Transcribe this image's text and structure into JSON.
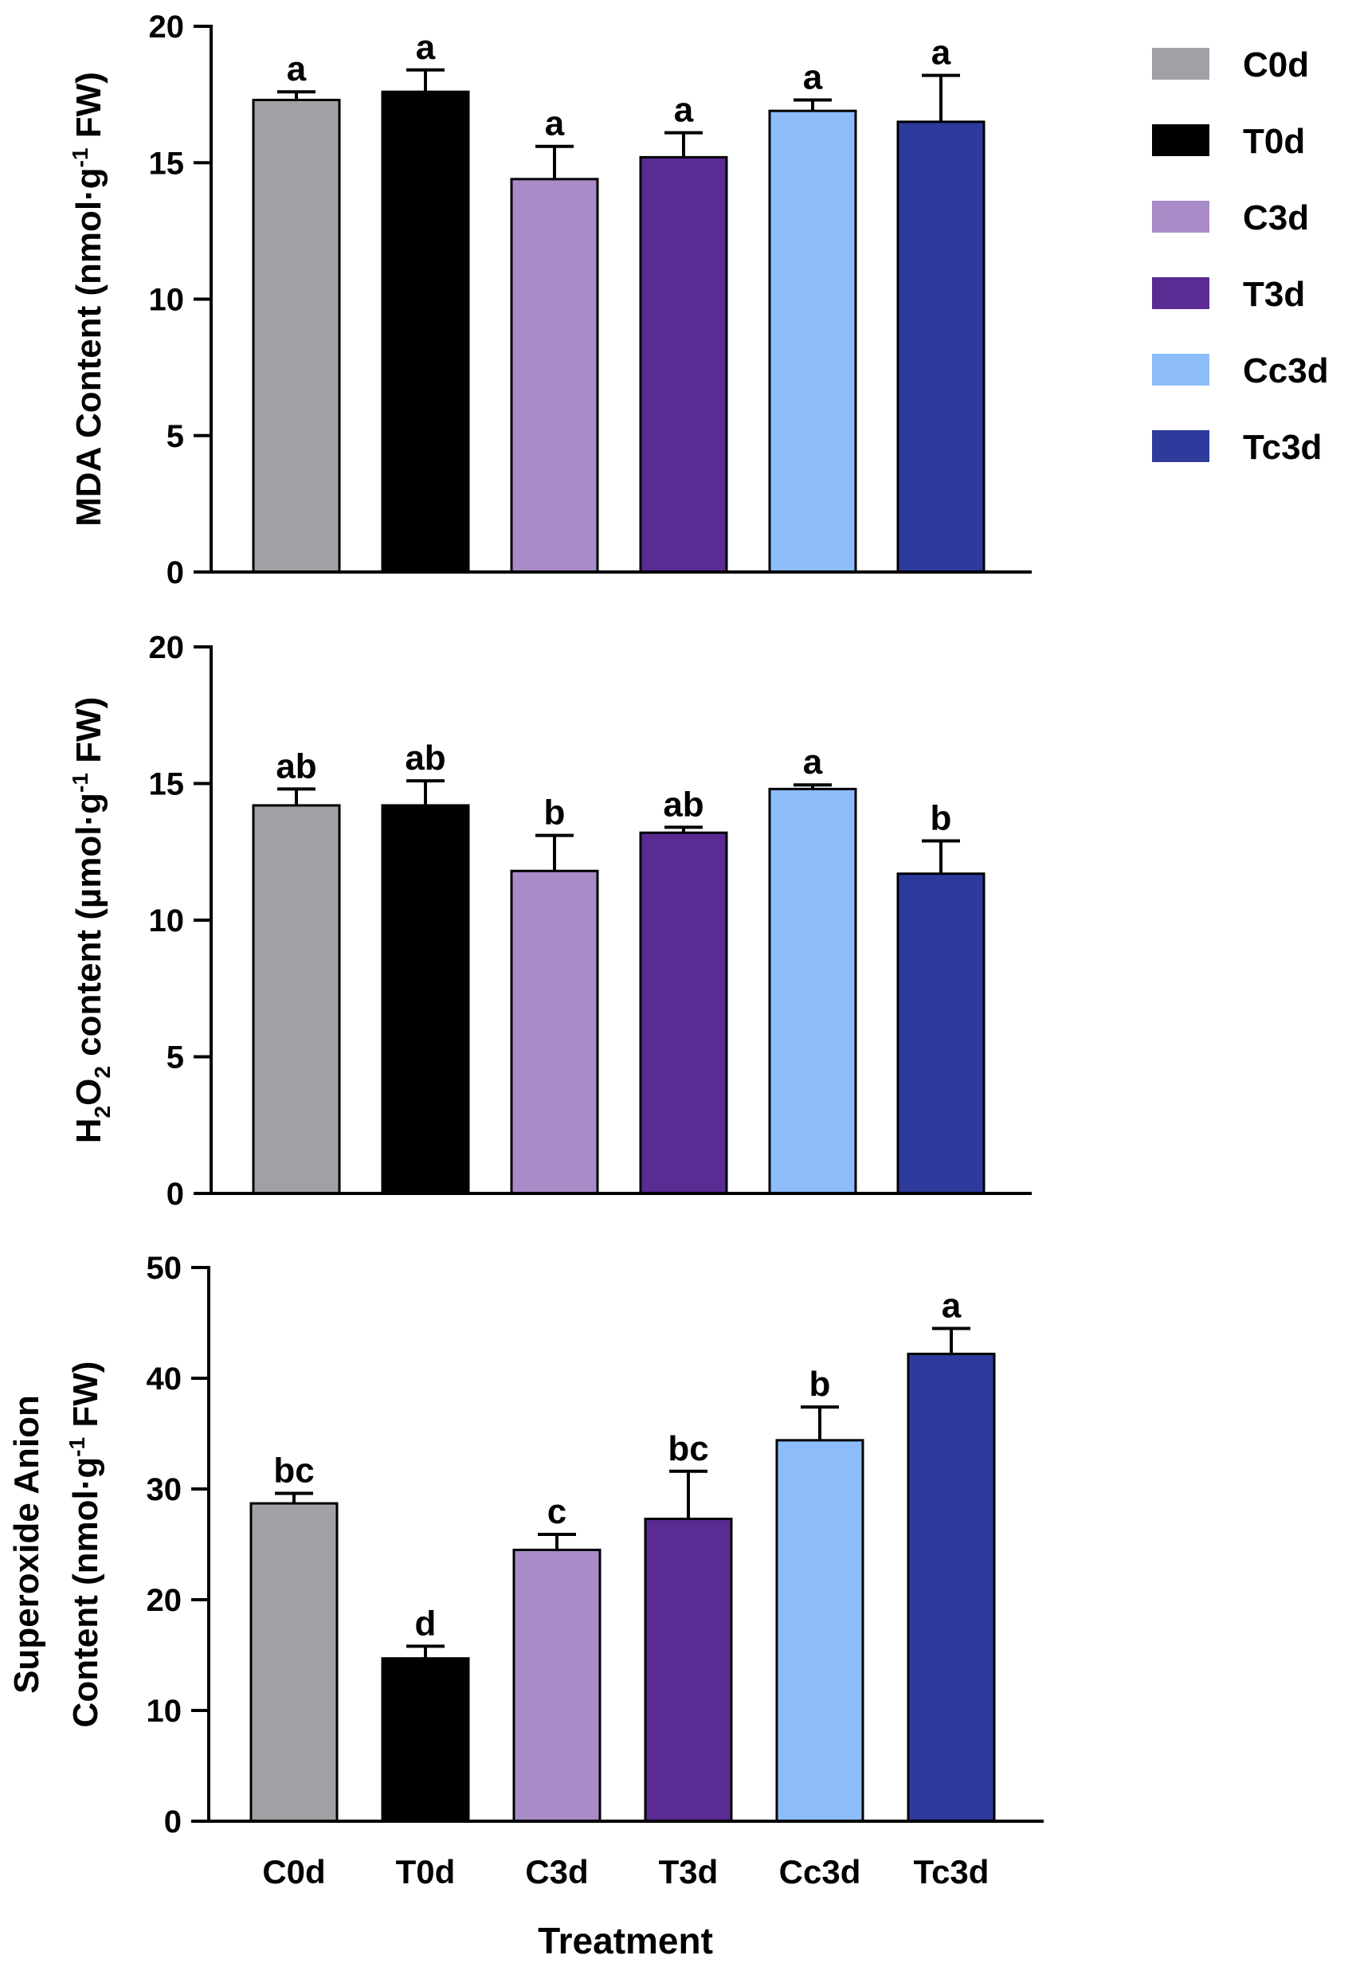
{
  "chart_data": [
    {
      "type": "bar",
      "ylabel_parts": [
        "MDA Content (nmol·g",
        "-1",
        " FW)"
      ],
      "categories": [
        "C0d",
        "T0d",
        "C3d",
        "T3d",
        "Cc3d",
        "Tc3d"
      ],
      "values": [
        17.3,
        17.6,
        14.4,
        15.2,
        16.9,
        16.5
      ],
      "errors": [
        0.3,
        0.8,
        1.2,
        0.9,
        0.4,
        1.7
      ],
      "significance": [
        "a",
        "a",
        "a",
        "a",
        "a",
        "a"
      ],
      "ylim": [
        0,
        20
      ],
      "yticks": [
        "0",
        "5",
        "10",
        "15",
        "20"
      ]
    },
    {
      "type": "bar",
      "ylabel_parts": [
        "H",
        "2",
        "O",
        "2",
        " content (µmol·g",
        "-1",
        " FW)"
      ],
      "categories": [
        "C0d",
        "T0d",
        "C3d",
        "T3d",
        "Cc3d",
        "Tc3d"
      ],
      "values": [
        14.2,
        14.2,
        11.8,
        13.2,
        14.8,
        11.7
      ],
      "errors": [
        0.6,
        0.9,
        1.3,
        0.2,
        0.15,
        1.2
      ],
      "significance": [
        "ab",
        "ab",
        "b",
        "ab",
        "a",
        "b"
      ],
      "ylim": [
        0,
        20
      ],
      "yticks": [
        "0",
        "5",
        "10",
        "15",
        "20"
      ]
    },
    {
      "type": "bar",
      "ylabel_line1": "Superoxide Anion",
      "ylabel_parts": [
        "Content (nmol·g",
        "-1",
        " FW)"
      ],
      "categories": [
        "C0d",
        "T0d",
        "C3d",
        "T3d",
        "Cc3d",
        "Tc3d"
      ],
      "values": [
        28.7,
        14.7,
        24.5,
        27.3,
        34.4,
        42.2
      ],
      "errors": [
        0.9,
        1.1,
        1.4,
        4.3,
        3.0,
        2.3
      ],
      "significance": [
        "bc",
        "d",
        "c",
        "bc",
        "b",
        "a"
      ],
      "ylim": [
        0,
        50
      ],
      "yticks": [
        "0",
        "10",
        "20",
        "30",
        "40",
        "50"
      ],
      "xlabel": "Treatment"
    }
  ],
  "legend": [
    {
      "label": "C0d",
      "color": "#a1a0a5"
    },
    {
      "label": "T0d",
      "color": "#000000"
    },
    {
      "label": "C3d",
      "color": "#a98bc7"
    },
    {
      "label": "T3d",
      "color": "#5a2b93"
    },
    {
      "label": "Cc3d",
      "color": "#8dbcfb"
    },
    {
      "label": "Tc3d",
      "color": "#2e3a9c"
    }
  ]
}
